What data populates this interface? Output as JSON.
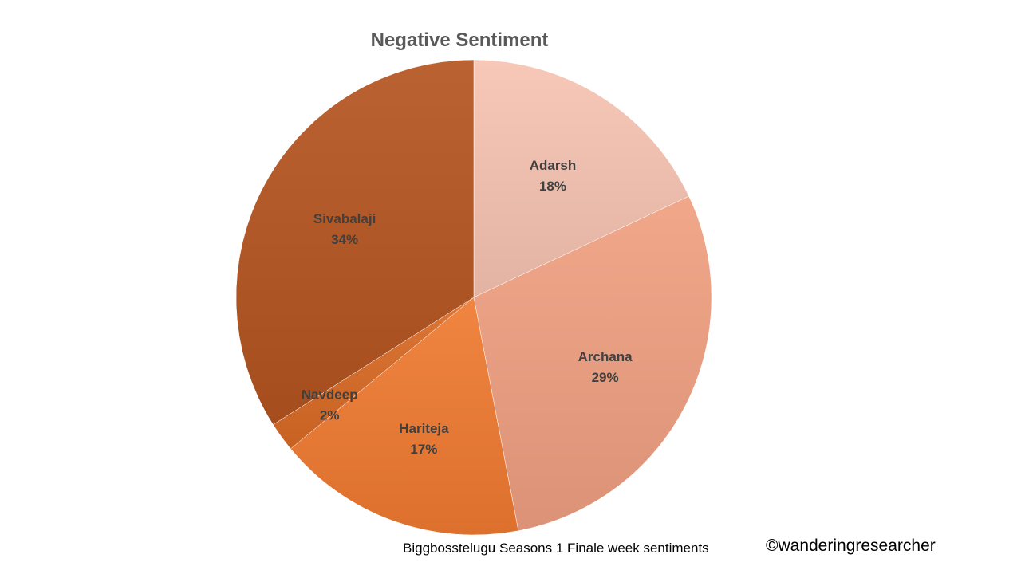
{
  "chart_data": {
    "type": "pie",
    "title": "Negative Sentiment",
    "categories": [
      "Adarsh",
      "Archana",
      "Hariteja",
      "Navdeep",
      "Sivabalaji"
    ],
    "values": [
      18,
      29,
      17,
      2,
      34
    ],
    "value_labels": [
      "18%",
      "29%",
      "17%",
      "2%",
      "34%"
    ],
    "unit": "%",
    "legend": "none",
    "colors": [
      "#f6c3b1",
      "#ef9f80",
      "#ef7a30",
      "#d96a25",
      "#b45420"
    ]
  },
  "footer": {
    "caption": "Biggbosstelugu Seasons 1 Finale week sentiments",
    "credit": "©wanderingresearcher"
  }
}
